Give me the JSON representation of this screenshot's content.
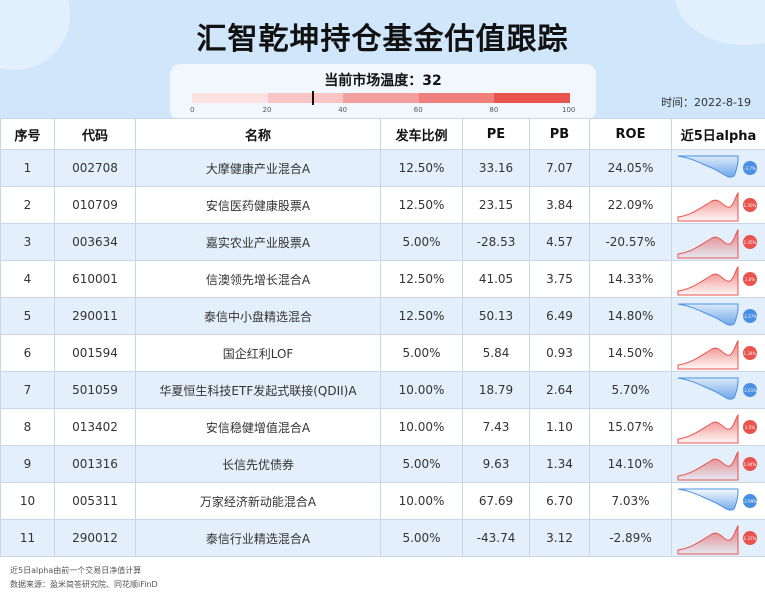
{
  "title": "汇智乾坤持仓基金估值跟踪",
  "temperature": {
    "label": "当前市场温度：32",
    "value": 32,
    "ticks": [
      "0",
      "20",
      "40",
      "60",
      "80",
      "100"
    ]
  },
  "date": "时间：2022-8-19",
  "columns": [
    "序号",
    "代码",
    "名称",
    "发车比例",
    "PE",
    "PB",
    "ROE",
    "近5日alpha"
  ],
  "rows": [
    {
      "no": "1",
      "code": "002708",
      "name": "大摩健康产业混合A",
      "ratio": "12.50%",
      "pe": "33.16",
      "pb": "7.07",
      "roe": "24.05%",
      "alpha": "-3.7%",
      "dir": "down"
    },
    {
      "no": "2",
      "code": "010709",
      "name": "安信医药健康股票A",
      "ratio": "12.50%",
      "pe": "23.15",
      "pb": "3.84",
      "roe": "22.09%",
      "alpha": "1.20%",
      "dir": "up"
    },
    {
      "no": "3",
      "code": "003634",
      "name": "嘉实农业产业股票A",
      "ratio": "5.00%",
      "pe": "-28.53",
      "pb": "4.57",
      "roe": "-20.57%",
      "alpha": "1.45%",
      "dir": "up"
    },
    {
      "no": "4",
      "code": "610001",
      "name": "信澳领先增长混合A",
      "ratio": "12.50%",
      "pe": "41.05",
      "pb": "3.75",
      "roe": "14.33%",
      "alpha": "1.6%",
      "dir": "up"
    },
    {
      "no": "5",
      "code": "290011",
      "name": "泰信中小盘精选混合",
      "ratio": "12.50%",
      "pe": "50.13",
      "pb": "6.49",
      "roe": "14.80%",
      "alpha": "-2.37%",
      "dir": "down"
    },
    {
      "no": "6",
      "code": "001594",
      "name": "国企红利LOF",
      "ratio": "5.00%",
      "pe": "5.84",
      "pb": "0.93",
      "roe": "14.50%",
      "alpha": "1.34%",
      "dir": "up"
    },
    {
      "no": "7",
      "code": "501059",
      "name": "华夏恒生科技ETF发起式联接(QDII)A",
      "ratio": "10.00%",
      "pe": "18.79",
      "pb": "2.64",
      "roe": "5.70%",
      "alpha": "-2.01%",
      "dir": "down"
    },
    {
      "no": "8",
      "code": "013402",
      "name": "安信稳健增值混合A",
      "ratio": "10.00%",
      "pe": "7.43",
      "pb": "1.10",
      "roe": "15.07%",
      "alpha": "3.5%",
      "dir": "up"
    },
    {
      "no": "9",
      "code": "001316",
      "name": "长信先优债券",
      "ratio": "5.00%",
      "pe": "9.63",
      "pb": "1.34",
      "roe": "14.10%",
      "alpha": "1.04%",
      "dir": "up"
    },
    {
      "no": "10",
      "code": "005311",
      "name": "万家经济新动能混合A",
      "ratio": "10.00%",
      "pe": "67.69",
      "pb": "6.70",
      "roe": "7.03%",
      "alpha": "-2.99%",
      "dir": "down"
    },
    {
      "no": "11",
      "code": "290012",
      "name": "泰信行业精选混合A",
      "ratio": "5.00%",
      "pe": "-43.74",
      "pb": "3.12",
      "roe": "-2.89%",
      "alpha": "1.37%",
      "dir": "up"
    }
  ],
  "colors": {
    "up": "#e9544f",
    "down": "#4a90e2"
  },
  "footer": {
    "note": "近5日alpha由前一个交易日净值计算",
    "source": "数据来源：盈米简答研究院、同花顺iFinD"
  }
}
